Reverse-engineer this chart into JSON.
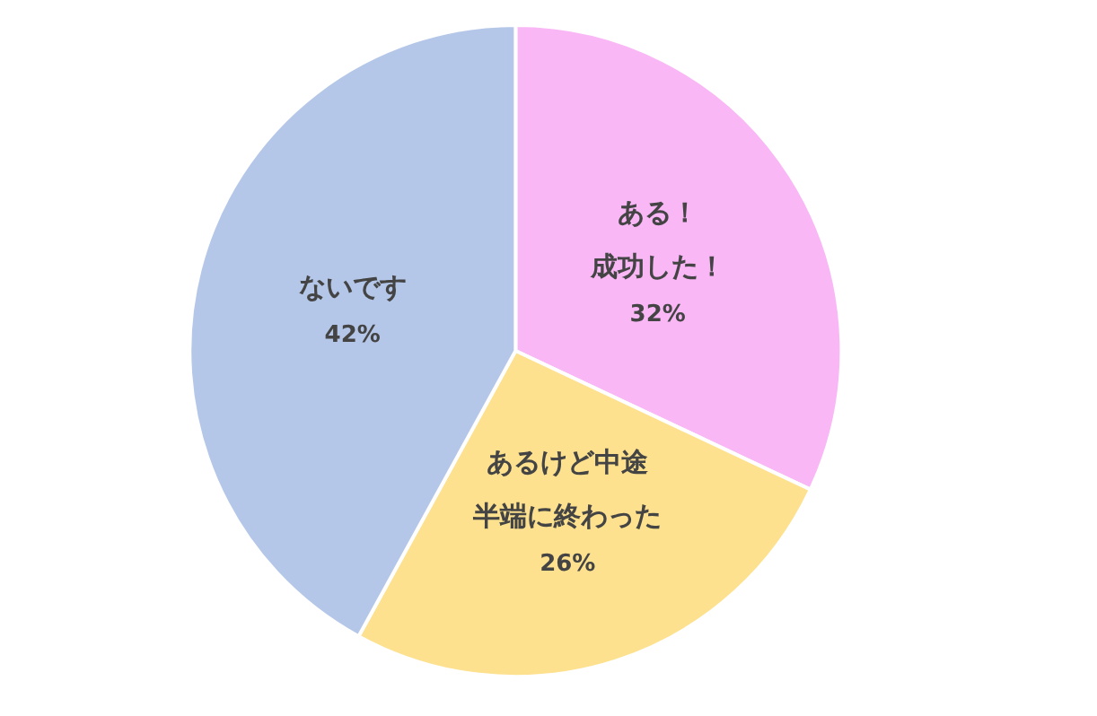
{
  "chart_data": {
    "type": "pie",
    "categories": [
      "ある！成功した！",
      "あるけど中途半端に終わった",
      "ないです"
    ],
    "values": [
      32,
      26,
      42
    ],
    "value_labels": [
      "32%",
      "26%",
      "42%"
    ],
    "colors": [
      "#f9b7f6",
      "#fde18e",
      "#b5c7e8"
    ]
  }
}
